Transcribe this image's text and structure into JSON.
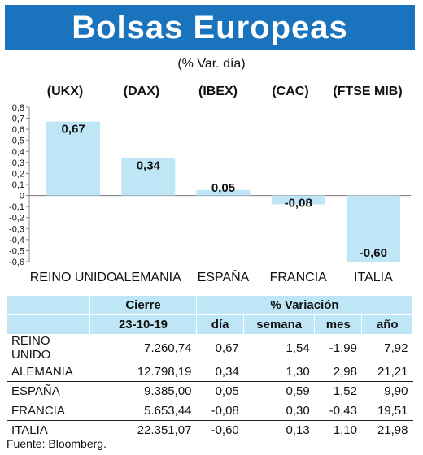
{
  "header": {
    "title": "Bolsas Europeas",
    "subtitle": "(% Var. día)"
  },
  "tickers": [
    "(UKX)",
    "(DAX)",
    "(IBEX)",
    "(CAC)",
    "(FTSE MIB)"
  ],
  "chart_data": {
    "type": "bar",
    "categories": [
      "REINO UNIDO",
      "ALEMANIA",
      "ESPAÑA",
      "FRANCIA",
      "ITALIA"
    ],
    "values": [
      0.67,
      0.34,
      0.05,
      -0.08,
      -0.6
    ],
    "value_labels": [
      "0,67",
      "0,34",
      "0,05",
      "-0,08",
      "-0,60"
    ],
    "ylim": [
      -0.6,
      0.8
    ],
    "yticks": [
      "0,8",
      "0,7",
      "0,6",
      "0,5",
      "0,4",
      "0,3",
      "0,2",
      "0,1",
      "0",
      "-0,1",
      "-0,2",
      "-0,3",
      "-0,4",
      "-0,5",
      "-0,6"
    ],
    "bar_color": "#bfe6f6"
  },
  "table": {
    "header_cierre": "Cierre",
    "header_variacion": "% Variación",
    "date": "23-10-19",
    "sub_headers": [
      "día",
      "semana",
      "mes",
      "año"
    ],
    "rows": [
      {
        "name": "REINO UNIDO",
        "cierre": "7.260,74",
        "dia": "0,67",
        "semana": "1,54",
        "mes": "-1,99",
        "ano": "7,92"
      },
      {
        "name": "ALEMANIA",
        "cierre": "12.798,19",
        "dia": "0,34",
        "semana": "1,30",
        "mes": "2,98",
        "ano": "21,21"
      },
      {
        "name": "ESPAÑA",
        "cierre": "9.385,00",
        "dia": "0,05",
        "semana": "0,59",
        "mes": "1,52",
        "ano": "9,90"
      },
      {
        "name": "FRANCIA",
        "cierre": "5.653,44",
        "dia": "-0,08",
        "semana": "0,30",
        "mes": "-0,43",
        "ano": "19,51"
      },
      {
        "name": "ITALIA",
        "cierre": "22.351,07",
        "dia": "-0,60",
        "semana": "0,13",
        "mes": "1,10",
        "ano": "21,98"
      }
    ]
  },
  "source": "Fuente: Bloomberg."
}
